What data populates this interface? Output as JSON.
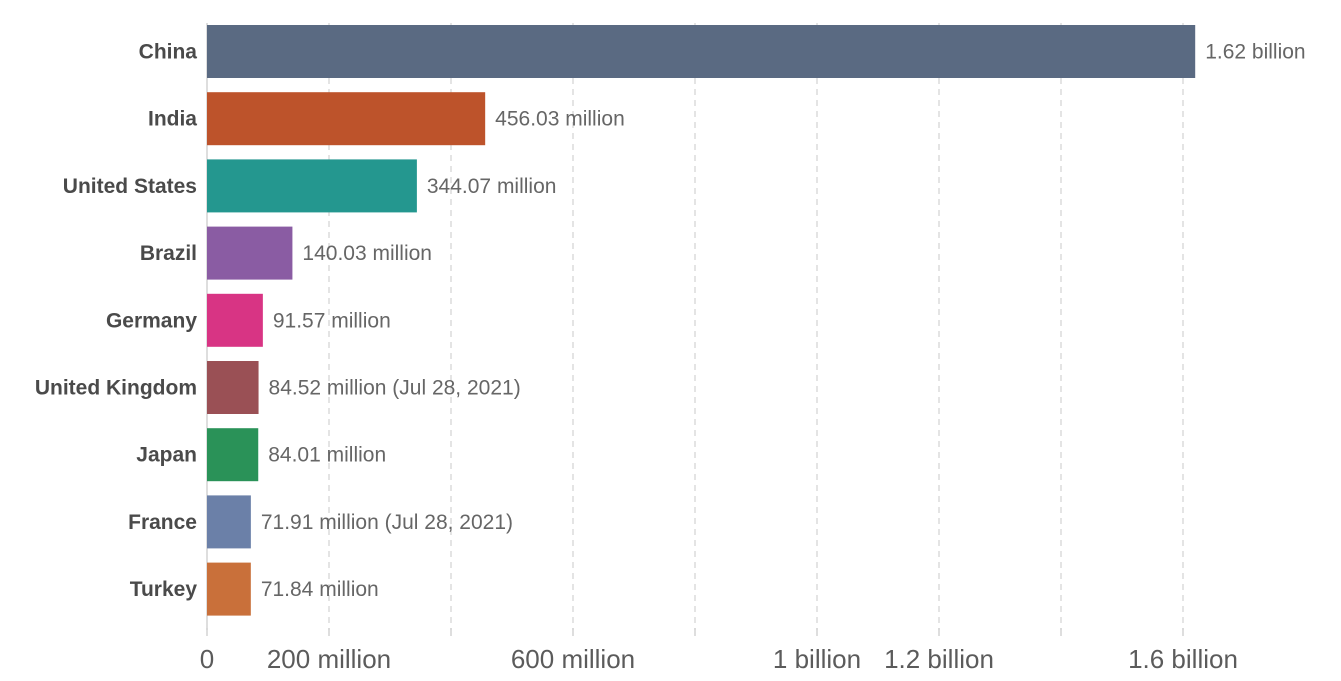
{
  "chart_data": {
    "type": "bar",
    "orientation": "horizontal",
    "categories": [
      "China",
      "India",
      "United States",
      "Brazil",
      "Germany",
      "United Kingdom",
      "Japan",
      "France",
      "Turkey"
    ],
    "values": [
      1620,
      456.03,
      344.07,
      140.03,
      91.57,
      84.52,
      84.01,
      71.91,
      71.84
    ],
    "unit": "million",
    "value_labels": [
      "1.62 billion",
      "456.03 million",
      "344.07 million",
      "140.03 million",
      "91.57 million",
      "84.52 million (Jul 28, 2021)",
      "84.01 million",
      "71.91 million (Jul 28, 2021)",
      "71.84 million"
    ],
    "colors": [
      "#5a6a82",
      "#bd532b",
      "#24978f",
      "#8a5ca3",
      "#d83484",
      "#9a5055",
      "#2a9258",
      "#6b80a8",
      "#c9703a"
    ],
    "xlim": [
      0,
      1620
    ],
    "x_ticks": [
      0,
      200,
      400,
      600,
      800,
      1000,
      1200,
      1400,
      1600
    ],
    "x_tick_labels": {
      "0": "0",
      "200": "200 million",
      "600": "600 million",
      "1000": "1 billion",
      "1200": "1.2 billion",
      "1600": "1.6 billion"
    },
    "grid": "vertical dashed",
    "title": "",
    "xlabel": "",
    "ylabel": ""
  }
}
